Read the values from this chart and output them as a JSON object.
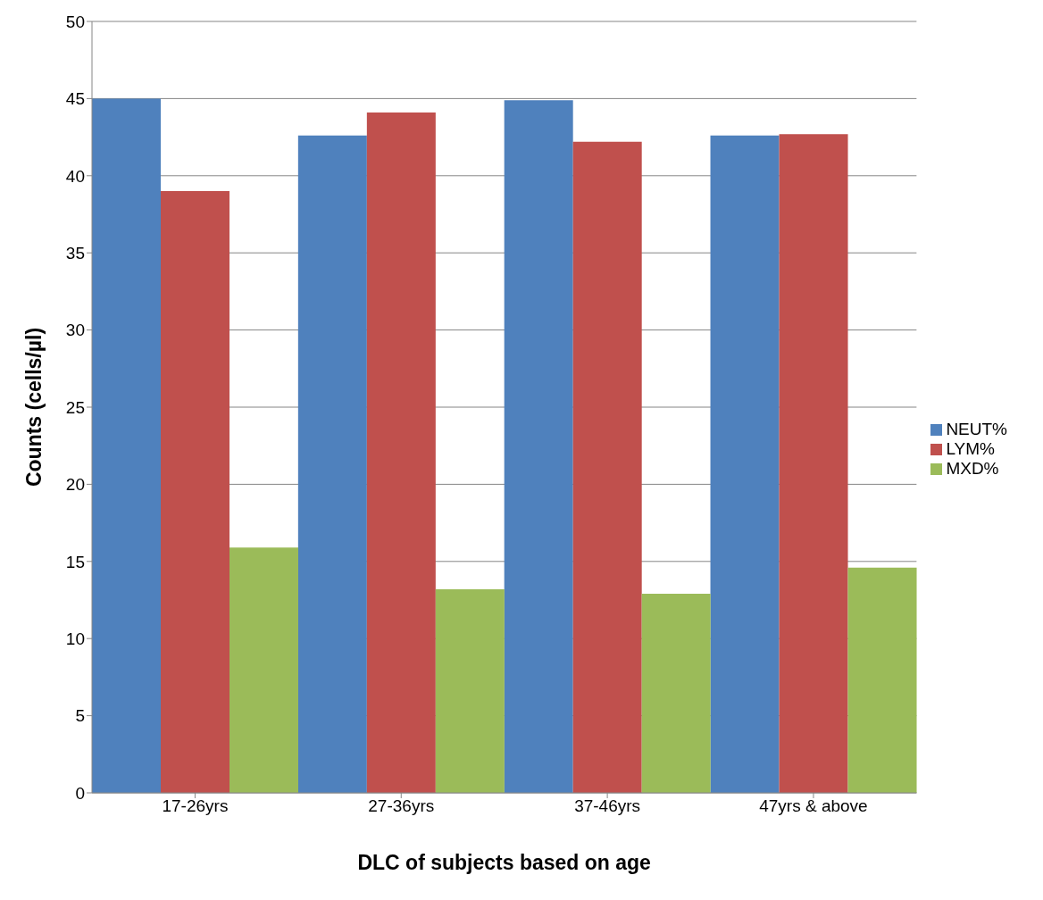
{
  "chart_data": {
    "type": "bar",
    "xlabel": "DLC of subjects based on age",
    "ylabel": "Counts (cells/µl)",
    "categories": [
      "17-26yrs",
      "27-36yrs",
      "37-46yrs",
      "47yrs &  above"
    ],
    "series": [
      {
        "name": "NEUT%",
        "color": "#4f81bd",
        "values": [
          45.0,
          42.6,
          44.9,
          42.6
        ]
      },
      {
        "name": "LYM%",
        "color": "#c0504d",
        "values": [
          39.0,
          44.1,
          42.2,
          42.7
        ]
      },
      {
        "name": "MXD%",
        "color": "#9bbb59",
        "values": [
          15.9,
          13.2,
          12.9,
          14.6
        ]
      }
    ],
    "ylim": [
      0,
      50
    ],
    "yticks": [
      0,
      5,
      10,
      15,
      20,
      25,
      30,
      35,
      40,
      45,
      50
    ],
    "grid": "y",
    "legend": "right"
  }
}
